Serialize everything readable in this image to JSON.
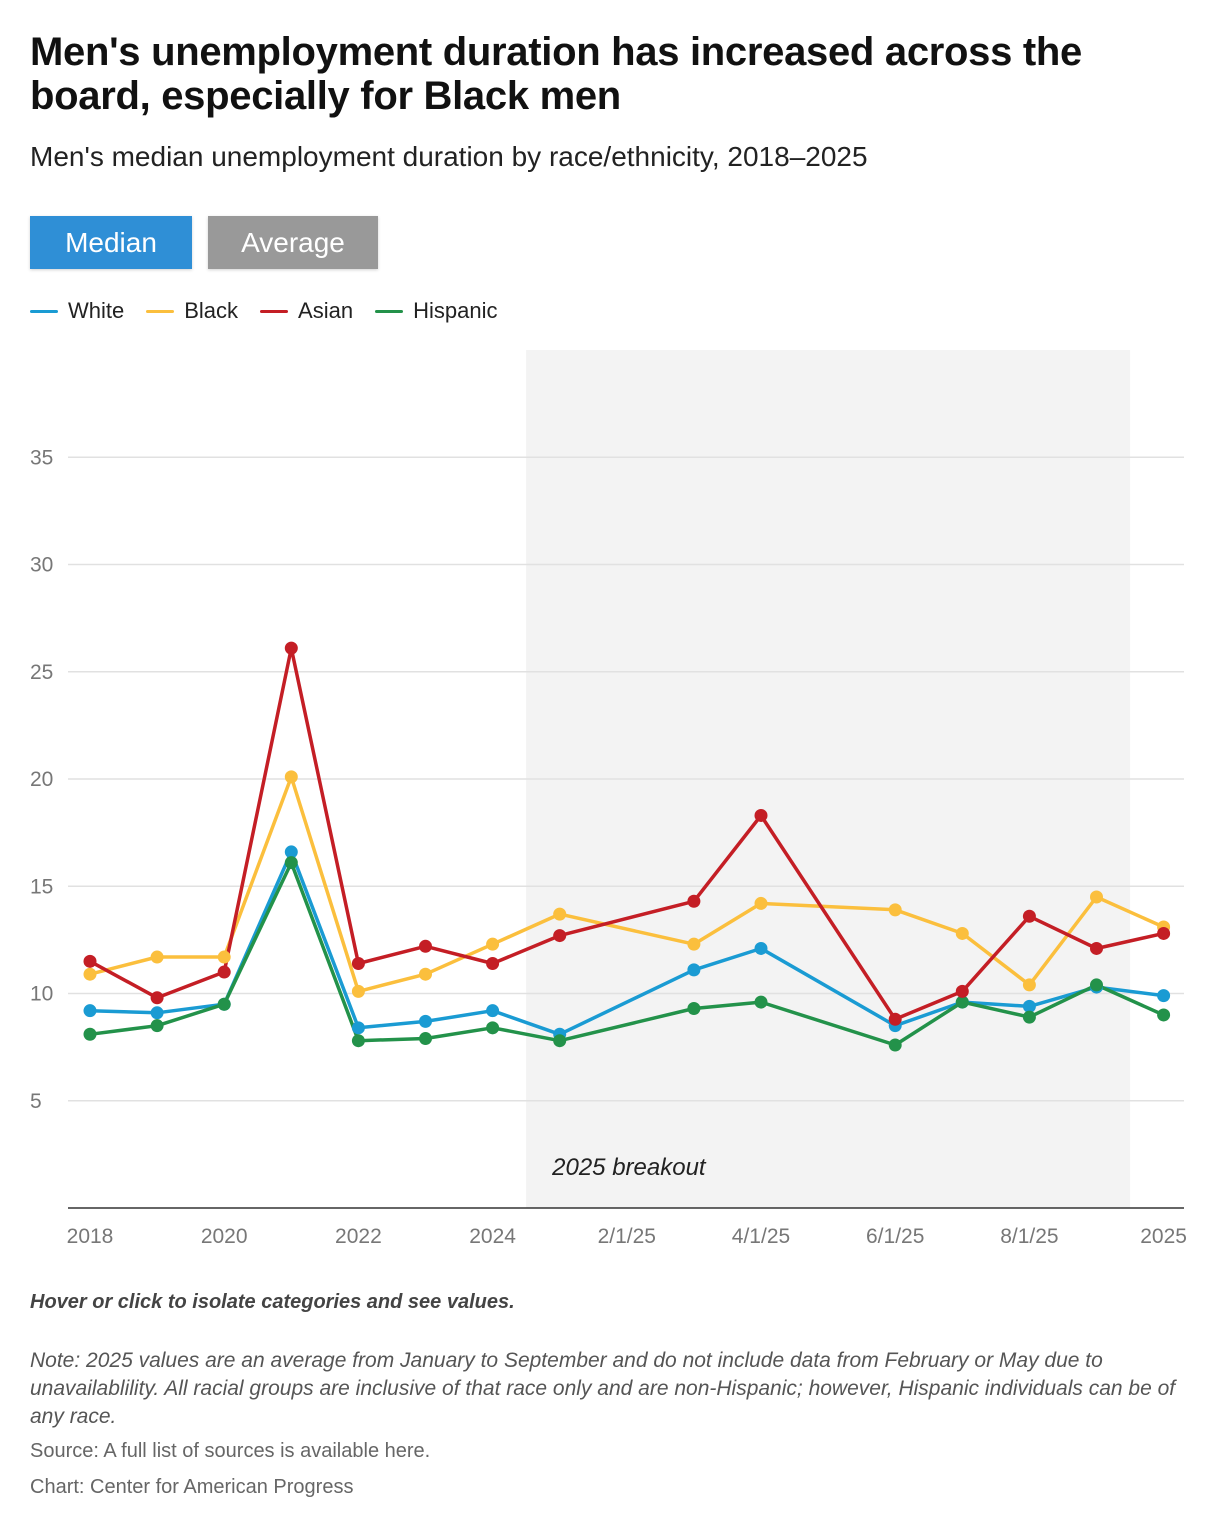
{
  "header": {
    "title": "Men's unemployment duration has increased across the board, especially for Black men",
    "subtitle": "Men's median unemployment duration by race/ethnicity, 2018–2025"
  },
  "tabs": [
    {
      "label": "Median",
      "active": true
    },
    {
      "label": "Average",
      "active": false
    }
  ],
  "chart_data": {
    "type": "line",
    "x": [
      "2018",
      "2019",
      "2020",
      "2021",
      "2022",
      "2023",
      "2024",
      "1/1/25",
      "2/1/25",
      "3/1/25",
      "4/1/25",
      "5/1/25",
      "6/1/25",
      "7/1/25",
      "8/1/25",
      "9/1/25",
      "2025"
    ],
    "xtick_labels": [
      "2018",
      "2020",
      "2022",
      "2024",
      "2/1/25",
      "4/1/25",
      "6/1/25",
      "8/1/25",
      "2025"
    ],
    "yticks": [
      5,
      10,
      15,
      20,
      25,
      30,
      35
    ],
    "ylim": [
      0,
      40
    ],
    "grid": true,
    "legend_position": "top-left",
    "series": [
      {
        "name": "White",
        "color": "#1a9bd3",
        "values": [
          9.2,
          9.1,
          9.5,
          16.6,
          8.4,
          8.7,
          9.2,
          8.1,
          null,
          11.1,
          12.1,
          null,
          8.5,
          9.6,
          9.4,
          10.3,
          9.9
        ]
      },
      {
        "name": "Black",
        "color": "#fbbf3d",
        "values": [
          10.9,
          11.7,
          11.7,
          20.1,
          10.1,
          10.9,
          12.3,
          13.7,
          null,
          12.3,
          14.2,
          null,
          13.9,
          12.8,
          10.4,
          14.5,
          13.1
        ]
      },
      {
        "name": "Asian",
        "color": "#c41e25",
        "values": [
          11.5,
          9.8,
          11.0,
          26.1,
          11.4,
          12.2,
          11.4,
          12.7,
          null,
          14.3,
          18.3,
          null,
          8.8,
          10.1,
          13.6,
          12.1,
          12.8
        ]
      },
      {
        "name": "Hispanic",
        "color": "#23924a",
        "values": [
          8.1,
          8.5,
          9.5,
          16.1,
          7.8,
          7.9,
          8.4,
          7.8,
          null,
          9.3,
          9.6,
          null,
          7.6,
          9.6,
          8.9,
          10.4,
          9.0
        ]
      }
    ],
    "annotation": {
      "label": "2025 breakout",
      "x_start": "1/1/25",
      "x_end": "9/1/25"
    }
  },
  "footer": {
    "hint": "Hover or click to isolate categories and see values.",
    "note": "Note: 2025 values are an average from January to September and do not include data from February or May due to unavailablility. All racial groups are inclusive of that race only and are non-Hispanic; however, Hispanic individuals can be of any race.",
    "source": "Source: A full list of sources is available here.",
    "credit": "Chart: Center for American Progress"
  }
}
